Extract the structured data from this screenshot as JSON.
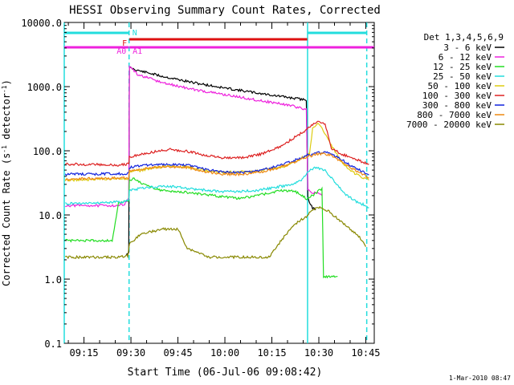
{
  "chart_data": {
    "type": "line",
    "title": "HESSI Observing Summary Count Rates, Corrected",
    "xlabel": "Start Time (06-Jul-06 09:08:42)",
    "ylabel_main": "Corrected Count Rate (s",
    "ylabel_sup": "-1",
    "ylabel_tail": " detector",
    "ylabel_sup2": "-1",
    "ylabel_close": ")",
    "x_unit": "minutes of day",
    "xlim": [
      548.7,
      647.7
    ],
    "xticks": [
      {
        "value": 555,
        "label": "09:15"
      },
      {
        "value": 570,
        "label": "09:30"
      },
      {
        "value": 585,
        "label": "09:45"
      },
      {
        "value": 600,
        "label": "10:00"
      },
      {
        "value": 615,
        "label": "10:15"
      },
      {
        "value": 630,
        "label": "10:30"
      },
      {
        "value": 645,
        "label": "10:45"
      }
    ],
    "y_scale": "log",
    "ylim": [
      0.1,
      10000
    ],
    "yticks": [
      {
        "value": 0.1,
        "label": "0.1"
      },
      {
        "value": 1,
        "label": "1.0"
      },
      {
        "value": 10,
        "label": "10.0"
      },
      {
        "value": 100,
        "label": "100.0"
      },
      {
        "value": 1000,
        "label": "1000.0"
      },
      {
        "value": 10000,
        "label": "10000.0"
      }
    ],
    "legend_title": "Det 1,3,4,5,6,9",
    "legend_position": "right",
    "series": [
      {
        "name": "3 - 6 keV",
        "color": "#000000",
        "points": [
          [
            568.5,
            2.5
          ],
          [
            569.3,
            2.5
          ],
          [
            569.5,
            2000
          ],
          [
            572,
            1800
          ],
          [
            580,
            1450
          ],
          [
            590,
            1150
          ],
          [
            600,
            950
          ],
          [
            610,
            800
          ],
          [
            620,
            680
          ],
          [
            626,
            620
          ],
          [
            626.5,
            20
          ],
          [
            627,
            15
          ],
          [
            628,
            13
          ],
          [
            629,
            12
          ]
        ]
      },
      {
        "name": "6 - 12 keV",
        "color": "#ee22dd",
        "points": [
          [
            549,
            14
          ],
          [
            566,
            14
          ],
          [
            568,
            15
          ],
          [
            569.3,
            18
          ],
          [
            569.5,
            2100
          ],
          [
            572,
            1550
          ],
          [
            580,
            1150
          ],
          [
            590,
            900
          ],
          [
            600,
            750
          ],
          [
            610,
            620
          ],
          [
            620,
            520
          ],
          [
            626,
            440
          ],
          [
            626.5,
            25
          ],
          [
            628,
            22
          ],
          [
            630,
            22
          ],
          [
            631,
            20
          ]
        ]
      },
      {
        "name": "12 - 25 keV",
        "color": "#22dd22",
        "points": [
          [
            549,
            4
          ],
          [
            564,
            4
          ],
          [
            566,
            15
          ],
          [
            569.3,
            17
          ],
          [
            569.5,
            35
          ],
          [
            571,
            37
          ],
          [
            574,
            30
          ],
          [
            580,
            24
          ],
          [
            590,
            22
          ],
          [
            600,
            19
          ],
          [
            605,
            18
          ],
          [
            612,
            21
          ],
          [
            618,
            24
          ],
          [
            622,
            24
          ],
          [
            626,
            18
          ],
          [
            628,
            20
          ],
          [
            630,
            24
          ],
          [
            631,
            25
          ],
          [
            631.5,
            1.1
          ],
          [
            636,
            1.1
          ]
        ]
      },
      {
        "name": "25 - 50 keV",
        "color": "#22dddd",
        "points": [
          [
            549,
            15
          ],
          [
            568,
            16
          ],
          [
            569.3,
            17
          ],
          [
            569.5,
            24
          ],
          [
            575,
            27
          ],
          [
            582,
            28
          ],
          [
            588,
            26
          ],
          [
            595,
            24
          ],
          [
            600,
            23
          ],
          [
            610,
            24
          ],
          [
            618,
            28
          ],
          [
            622,
            30
          ],
          [
            625,
            37
          ],
          [
            627,
            50
          ],
          [
            629,
            55
          ],
          [
            632,
            50
          ],
          [
            635,
            33
          ],
          [
            638,
            22
          ],
          [
            642,
            16
          ],
          [
            645,
            14
          ],
          [
            646,
            13
          ]
        ]
      },
      {
        "name": "50 - 100 keV",
        "color": "#ddcc11",
        "points": [
          [
            549,
            35
          ],
          [
            569.3,
            37
          ],
          [
            569.5,
            45
          ],
          [
            575,
            52
          ],
          [
            582,
            58
          ],
          [
            588,
            56
          ],
          [
            595,
            48
          ],
          [
            600,
            46
          ],
          [
            610,
            48
          ],
          [
            618,
            55
          ],
          [
            622,
            65
          ],
          [
            625,
            80
          ],
          [
            627,
            90
          ],
          [
            628,
            220
          ],
          [
            630,
            270
          ],
          [
            632,
            180
          ],
          [
            634,
            120
          ],
          [
            637,
            70
          ],
          [
            640,
            50
          ],
          [
            643,
            40
          ],
          [
            646,
            35
          ]
        ]
      },
      {
        "name": "100 - 300 keV",
        "color": "#dd2222",
        "points": [
          [
            549,
            62
          ],
          [
            566,
            60
          ],
          [
            569.3,
            62
          ],
          [
            569.5,
            80
          ],
          [
            575,
            92
          ],
          [
            582,
            105
          ],
          [
            588,
            98
          ],
          [
            595,
            83
          ],
          [
            600,
            77
          ],
          [
            606,
            78
          ],
          [
            612,
            90
          ],
          [
            618,
            118
          ],
          [
            622,
            160
          ],
          [
            626,
            210
          ],
          [
            628,
            260
          ],
          [
            630,
            290
          ],
          [
            632,
            260
          ],
          [
            634,
            110
          ],
          [
            637,
            90
          ],
          [
            640,
            80
          ],
          [
            643,
            70
          ],
          [
            646,
            62
          ]
        ]
      },
      {
        "name": "300 - 800 keV",
        "color": "#1122dd",
        "points": [
          [
            549,
            43
          ],
          [
            569.3,
            44
          ],
          [
            569.5,
            55
          ],
          [
            575,
            60
          ],
          [
            582,
            62
          ],
          [
            588,
            60
          ],
          [
            595,
            50
          ],
          [
            600,
            46
          ],
          [
            606,
            46
          ],
          [
            612,
            50
          ],
          [
            618,
            60
          ],
          [
            622,
            70
          ],
          [
            626,
            85
          ],
          [
            630,
            95
          ],
          [
            633,
            92
          ],
          [
            637,
            75
          ],
          [
            640,
            60
          ],
          [
            643,
            50
          ],
          [
            646,
            42
          ]
        ]
      },
      {
        "name": "800 - 7000 keV",
        "color": "#ee8811",
        "points": [
          [
            549,
            36
          ],
          [
            569.3,
            38
          ],
          [
            569.5,
            48
          ],
          [
            575,
            54
          ],
          [
            582,
            57
          ],
          [
            588,
            55
          ],
          [
            595,
            46
          ],
          [
            600,
            43
          ],
          [
            606,
            43
          ],
          [
            612,
            47
          ],
          [
            618,
            56
          ],
          [
            622,
            66
          ],
          [
            626,
            80
          ],
          [
            630,
            90
          ],
          [
            633,
            88
          ],
          [
            637,
            70
          ],
          [
            640,
            55
          ],
          [
            643,
            46
          ],
          [
            646,
            38
          ]
        ]
      },
      {
        "name": "7000 - 20000 keV",
        "color": "#888800",
        "points": [
          [
            549,
            2.2
          ],
          [
            566,
            2.2
          ],
          [
            569,
            2.3
          ],
          [
            569.5,
            3.5
          ],
          [
            573,
            5
          ],
          [
            580,
            6
          ],
          [
            585,
            6
          ],
          [
            588,
            3
          ],
          [
            595,
            2.2
          ],
          [
            605,
            2.2
          ],
          [
            614,
            2.2
          ],
          [
            618,
            4
          ],
          [
            622,
            7
          ],
          [
            626,
            9.5
          ],
          [
            628,
            12
          ],
          [
            630,
            13
          ],
          [
            633,
            11.5
          ],
          [
            637,
            8
          ],
          [
            640,
            6
          ],
          [
            643,
            4.5
          ],
          [
            645,
            3.2
          ]
        ]
      }
    ],
    "attenuator_bars": [
      {
        "label": "A0",
        "color": "#ee22dd",
        "x": [
          548.7,
          569.3
        ]
      },
      {
        "label": "A1",
        "color": "#ee22dd",
        "x": [
          569.5,
          647.7
        ]
      },
      {
        "label": "F",
        "color": "#dd1111",
        "x": [
          569.5,
          626.3
        ]
      }
    ],
    "night_bars": [
      {
        "label": "N",
        "color": "#22dddd",
        "x": [
          548.7,
          569.4
        ]
      },
      {
        "label": "",
        "color": "#22dddd",
        "x": [
          626.4,
          645.3
        ]
      }
    ],
    "vertical_markers": [
      {
        "x": 548.7,
        "color": "#22dddd",
        "style": "solid"
      },
      {
        "x": 569.4,
        "color": "#22dddd",
        "style": "dashed"
      },
      {
        "x": 626.4,
        "color": "#22dddd",
        "style": "solid"
      },
      {
        "x": 645.3,
        "color": "#22dddd",
        "style": "dashed"
      }
    ],
    "footer": "1-Mar-2010 08:47"
  }
}
